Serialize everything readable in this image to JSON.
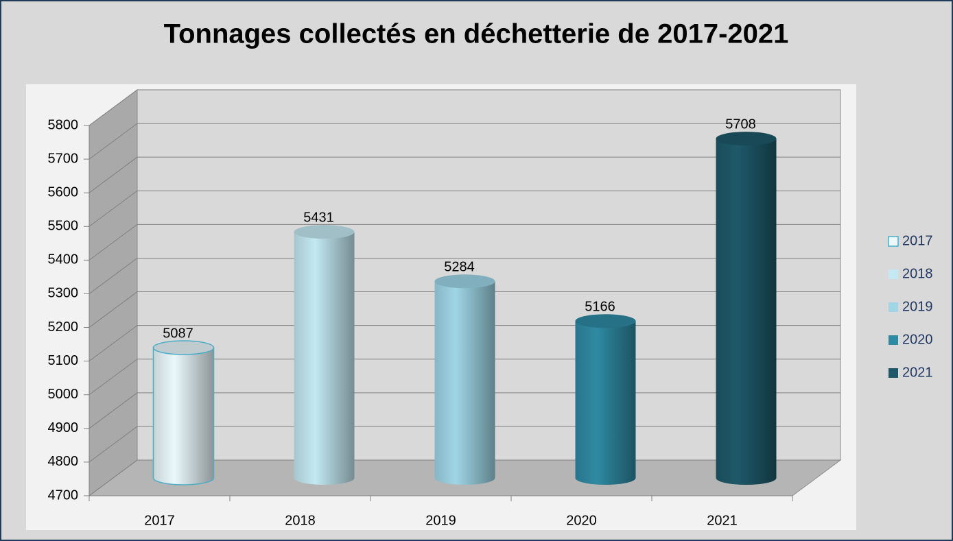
{
  "chart_data": {
    "type": "bar3d",
    "title": "Tonnages collectés en déchetterie de 2017-2021",
    "categories": [
      "2017",
      "2018",
      "2019",
      "2020",
      "2021"
    ],
    "values": [
      5087,
      5431,
      5284,
      5166,
      5708
    ],
    "colors": [
      "#eaf8fc",
      "#c3e9f2",
      "#9fd6e6",
      "#2f8aa3",
      "#1e5969"
    ],
    "ylim": [
      4700,
      5800
    ],
    "yticks": [
      4700,
      4800,
      4900,
      5000,
      5100,
      5200,
      5300,
      5400,
      5500,
      5600,
      5700,
      5800
    ],
    "grid": true,
    "legend": "right"
  }
}
